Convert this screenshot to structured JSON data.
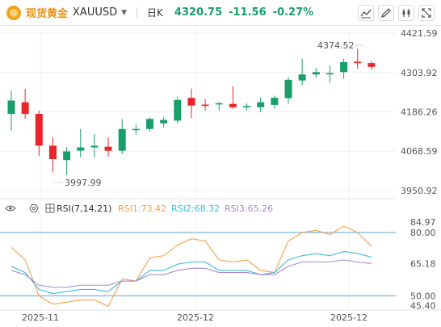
{
  "header": {
    "brand": "现货黄金",
    "symbol": "XAUUSD",
    "period": "日K",
    "price": "4320.75",
    "change": "-11.56",
    "change_pct": "-0.27%",
    "tools": [
      "line-chart-icon",
      "pencil-icon",
      "indicator-icon",
      "fullscreen-icon"
    ]
  },
  "colors": {
    "up": "#1a9e6a",
    "down": "#e8252a",
    "rsi1": "#f5a04a",
    "rsi2": "#3cbcd6",
    "rsi3": "#a58ad3",
    "refline": "#5aa2d8",
    "brand": "#e8931a"
  },
  "rsi_legend": {
    "name": "RSI(7,14,21)",
    "rsi1": "RSI1:73.42",
    "rsi2": "RSI2:68.32",
    "rsi3": "RSI3:65.26"
  },
  "chart_data": [
    {
      "type": "candlestick",
      "ylim": [
        3950.92,
        4421.59
      ],
      "yticks": [
        "4421.59",
        "4303.92",
        "4186.26",
        "4068.59",
        "3950.92"
      ],
      "xticks": [
        "2025-11",
        "2025-12",
        "2025-12"
      ],
      "annotations": [
        "4374.52",
        "3997.99"
      ],
      "candles": [
        {
          "o": 4180,
          "h": 4250,
          "l": 4130,
          "c": 4220
        },
        {
          "o": 4215,
          "h": 4255,
          "l": 4165,
          "c": 4180
        },
        {
          "o": 4180,
          "h": 4190,
          "l": 4055,
          "c": 4085
        },
        {
          "o": 4085,
          "h": 4110,
          "l": 4005,
          "c": 4045
        },
        {
          "o": 4042,
          "h": 4080,
          "l": 3998,
          "c": 4068
        },
        {
          "o": 4070,
          "h": 4135,
          "l": 4050,
          "c": 4080
        },
        {
          "o": 4080,
          "h": 4120,
          "l": 4050,
          "c": 4085
        },
        {
          "o": 4082,
          "h": 4110,
          "l": 4052,
          "c": 4070
        },
        {
          "o": 4070,
          "h": 4165,
          "l": 4060,
          "c": 4135
        },
        {
          "o": 4132,
          "h": 4148,
          "l": 4118,
          "c": 4135
        },
        {
          "o": 4135,
          "h": 4170,
          "l": 4128,
          "c": 4165
        },
        {
          "o": 4152,
          "h": 4170,
          "l": 4140,
          "c": 4162
        },
        {
          "o": 4160,
          "h": 4232,
          "l": 4152,
          "c": 4222
        },
        {
          "o": 4228,
          "h": 4256,
          "l": 4168,
          "c": 4205
        },
        {
          "o": 4208,
          "h": 4224,
          "l": 4190,
          "c": 4204
        },
        {
          "o": 4210,
          "h": 4216,
          "l": 4190,
          "c": 4212
        },
        {
          "o": 4210,
          "h": 4262,
          "l": 4195,
          "c": 4200
        },
        {
          "o": 4200,
          "h": 4212,
          "l": 4190,
          "c": 4204
        },
        {
          "o": 4200,
          "h": 4230,
          "l": 4185,
          "c": 4215
        },
        {
          "o": 4207,
          "h": 4235,
          "l": 4196,
          "c": 4228
        },
        {
          "o": 4227,
          "h": 4290,
          "l": 4210,
          "c": 4282
        },
        {
          "o": 4280,
          "h": 4345,
          "l": 4265,
          "c": 4298
        },
        {
          "o": 4298,
          "h": 4318,
          "l": 4288,
          "c": 4305
        },
        {
          "o": 4302,
          "h": 4325,
          "l": 4272,
          "c": 4302
        },
        {
          "o": 4305,
          "h": 4345,
          "l": 4285,
          "c": 4335
        },
        {
          "o": 4336,
          "h": 4374.52,
          "l": 4315,
          "c": 4332
        },
        {
          "o": 4332,
          "h": 4338,
          "l": 4312,
          "c": 4320.75
        }
      ]
    },
    {
      "type": "line",
      "title": "RSI(7,14,21)",
      "ylim": [
        44,
        88
      ],
      "yticks": [
        "84.97",
        "80.00",
        "65.18",
        "50.00",
        "45.40"
      ],
      "series": [
        {
          "name": "RSI1:73.42",
          "values": [
            73,
            67,
            50,
            46,
            47,
            48,
            48,
            45,
            58,
            57,
            68,
            69,
            74,
            77,
            76,
            67,
            66,
            67,
            62,
            61,
            76,
            80,
            81,
            79,
            83,
            80,
            73.42
          ]
        },
        {
          "name": "RSI2:68.32",
          "values": [
            64,
            61,
            53,
            51,
            52,
            53,
            53,
            52,
            57,
            57,
            62,
            62,
            65,
            66,
            66,
            62,
            62,
            62,
            60,
            61,
            67,
            69,
            70,
            69,
            71,
            70,
            68.32
          ]
        },
        {
          "name": "RSI3:65.26",
          "values": [
            62,
            60,
            55,
            54,
            54,
            55,
            55,
            55,
            57,
            57,
            60,
            60,
            62,
            63,
            63,
            61,
            61,
            61,
            60,
            60,
            64,
            66,
            66,
            66,
            67,
            66,
            65.26
          ]
        }
      ]
    }
  ]
}
